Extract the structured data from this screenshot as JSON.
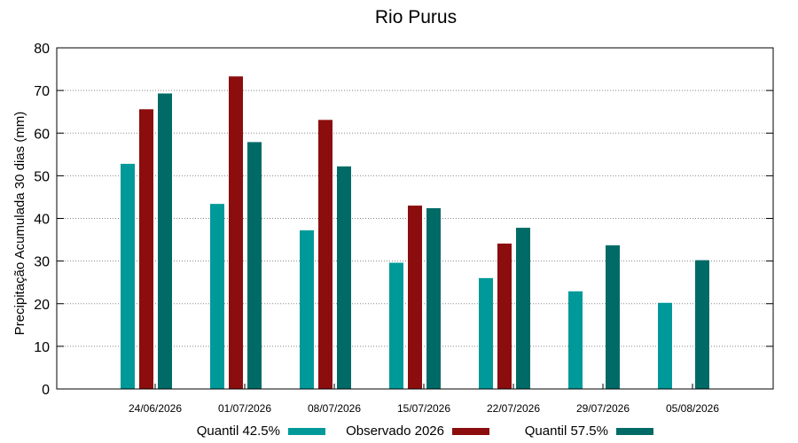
{
  "chart_data": {
    "type": "bar",
    "title": "Rio Purus",
    "xlabel": "",
    "ylabel": "Precipitação Acumulada 30 dias (mm)",
    "ylim": [
      0,
      80
    ],
    "yticks": [
      0,
      10,
      20,
      30,
      40,
      50,
      60,
      70,
      80
    ],
    "grid": true,
    "legend_position": "bottom",
    "categories": [
      "24/06/2026",
      "01/07/2026",
      "08/07/2026",
      "15/07/2026",
      "22/07/2026",
      "29/07/2026",
      "05/08/2026"
    ],
    "series": [
      {
        "name": "Quantil 42.5%",
        "color": "#009999",
        "values": [
          52.8,
          43.4,
          37.2,
          29.6,
          26.0,
          22.9,
          20.2
        ]
      },
      {
        "name": "Observado 2026",
        "color": "#8b0d0d",
        "values": [
          65.6,
          73.3,
          63.1,
          43.0,
          34.1,
          null,
          null
        ]
      },
      {
        "name": "Quantil 57.5%",
        "color": "#006b66",
        "values": [
          69.3,
          57.9,
          52.2,
          42.4,
          37.8,
          33.7,
          30.2
        ]
      }
    ]
  }
}
